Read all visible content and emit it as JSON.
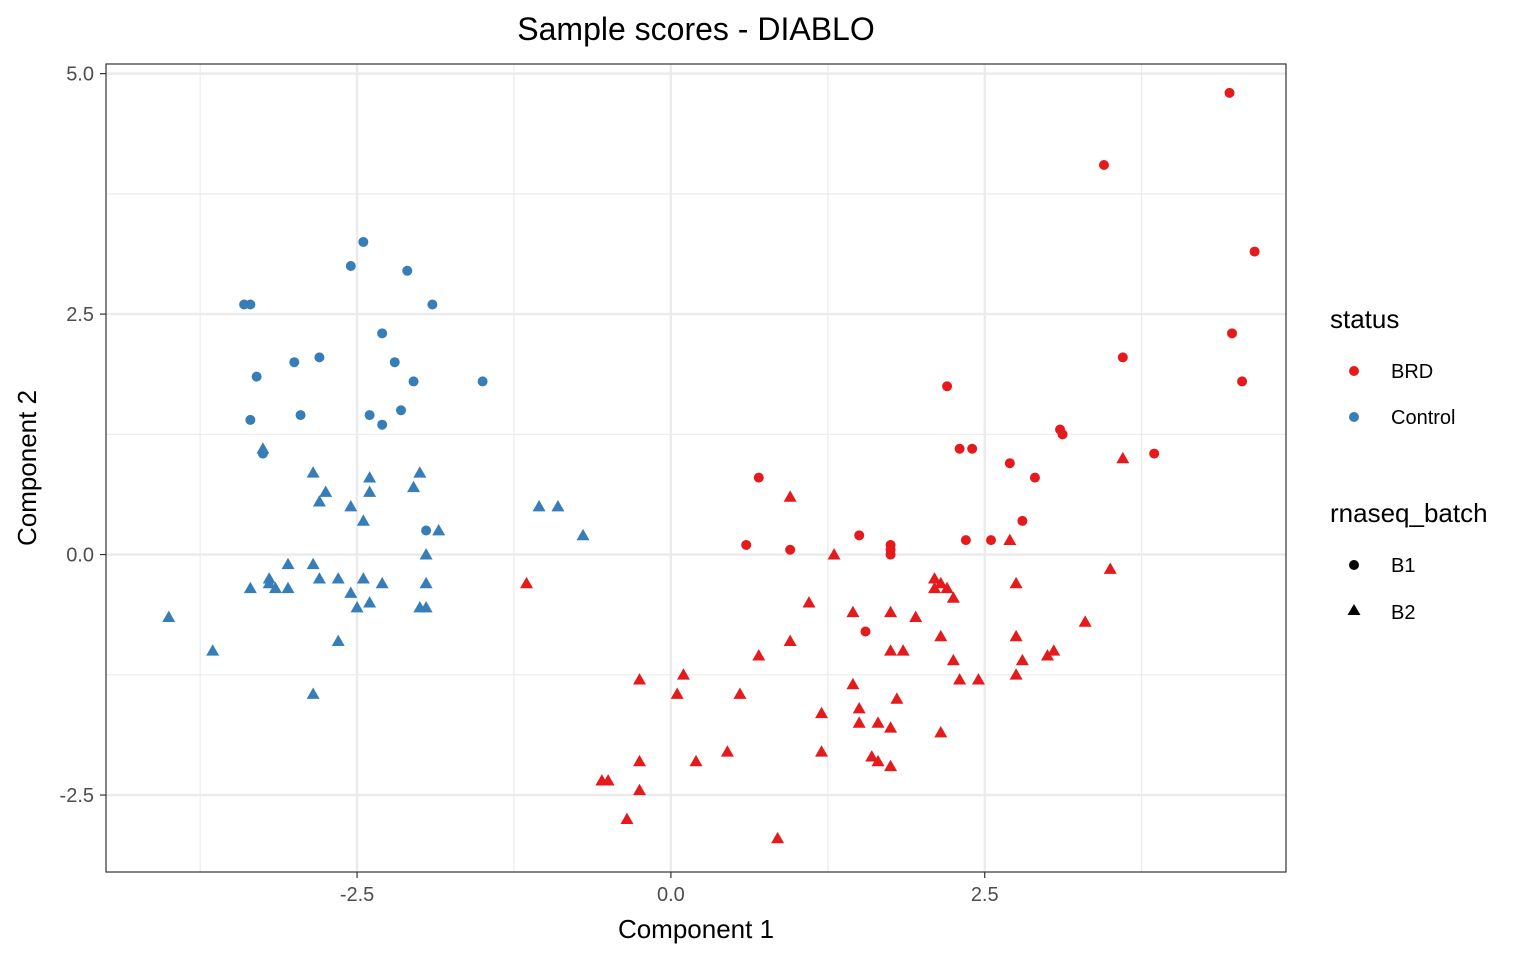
{
  "chart_data": {
    "type": "scatter",
    "title": "Sample scores - DIABLO",
    "xlabel": "Component 1",
    "ylabel": "Component 2",
    "xlim": [
      -4.5,
      4.9
    ],
    "ylim": [
      -3.3,
      5.1
    ],
    "x_ticks": [
      {
        "value": -2.5,
        "label": "-2.5"
      },
      {
        "value": 0.0,
        "label": "0.0"
      },
      {
        "value": 2.5,
        "label": "2.5"
      }
    ],
    "y_ticks": [
      {
        "value": -2.5,
        "label": "-2.5"
      },
      {
        "value": 0.0,
        "label": "0.0"
      },
      {
        "value": 2.5,
        "label": "2.5"
      },
      {
        "value": 5.0,
        "label": "5.0"
      }
    ],
    "grid": true,
    "legend_position": "right",
    "legend": {
      "color_title": "status",
      "shape_title": "rnaseq_batch",
      "colors": [
        {
          "label": "BRD",
          "color": "#e41a1c"
        },
        {
          "label": "Control",
          "color": "#377eb8"
        }
      ],
      "shapes": [
        {
          "label": "B1",
          "shape": "circle"
        },
        {
          "label": "B2",
          "shape": "triangle"
        }
      ]
    },
    "series": [
      {
        "status": "Control",
        "batch": "B1",
        "color": "#377eb8",
        "shape": "circle",
        "points": [
          [
            -3.4,
            2.6
          ],
          [
            -3.35,
            2.6
          ],
          [
            -2.45,
            3.25
          ],
          [
            -2.55,
            3.0
          ],
          [
            -2.1,
            2.95
          ],
          [
            -1.9,
            2.6
          ],
          [
            -3.3,
            1.85
          ],
          [
            -3.0,
            2.0
          ],
          [
            -2.8,
            2.05
          ],
          [
            -2.3,
            2.3
          ],
          [
            -2.2,
            2.0
          ],
          [
            -2.05,
            1.8
          ],
          [
            -1.5,
            1.8
          ],
          [
            -3.35,
            1.4
          ],
          [
            -2.95,
            1.45
          ],
          [
            -2.4,
            1.45
          ],
          [
            -2.15,
            1.5
          ],
          [
            -2.3,
            1.35
          ],
          [
            -3.25,
            1.05
          ],
          [
            -1.95,
            0.25
          ]
        ]
      },
      {
        "status": "Control",
        "batch": "B2",
        "color": "#377eb8",
        "shape": "triangle",
        "points": [
          [
            -3.25,
            1.1
          ],
          [
            -2.85,
            0.85
          ],
          [
            -2.75,
            0.65
          ],
          [
            -2.8,
            0.55
          ],
          [
            -2.4,
            0.8
          ],
          [
            -2.55,
            0.5
          ],
          [
            -2.45,
            0.35
          ],
          [
            -2.4,
            0.65
          ],
          [
            -2.05,
            0.7
          ],
          [
            -2.0,
            0.85
          ],
          [
            -1.85,
            0.25
          ],
          [
            -1.95,
            0.0
          ],
          [
            -1.05,
            0.5
          ],
          [
            -0.9,
            0.5
          ],
          [
            -0.7,
            0.2
          ],
          [
            -3.05,
            -0.1
          ],
          [
            -2.85,
            -0.1
          ],
          [
            -3.2,
            -0.25
          ],
          [
            -3.2,
            -0.3
          ],
          [
            -3.15,
            -0.35
          ],
          [
            -3.05,
            -0.35
          ],
          [
            -2.8,
            -0.25
          ],
          [
            -2.65,
            -0.25
          ],
          [
            -2.55,
            -0.4
          ],
          [
            -2.45,
            -0.25
          ],
          [
            -2.3,
            -0.3
          ],
          [
            -2.4,
            -0.5
          ],
          [
            -2.5,
            -0.55
          ],
          [
            -2.0,
            -0.55
          ],
          [
            -1.95,
            -0.55
          ],
          [
            -1.95,
            -0.3
          ],
          [
            -3.35,
            -0.35
          ],
          [
            -4.0,
            -0.65
          ],
          [
            -3.65,
            -1.0
          ],
          [
            -2.65,
            -0.9
          ],
          [
            -2.85,
            -1.45
          ]
        ]
      },
      {
        "status": "BRD",
        "batch": "B1",
        "color": "#e41a1c",
        "shape": "circle",
        "points": [
          [
            4.45,
            4.8
          ],
          [
            3.45,
            4.05
          ],
          [
            4.65,
            3.15
          ],
          [
            4.47,
            2.3
          ],
          [
            3.6,
            2.05
          ],
          [
            4.55,
            1.8
          ],
          [
            2.2,
            1.75
          ],
          [
            3.1,
            1.3
          ],
          [
            3.12,
            1.25
          ],
          [
            2.3,
            1.1
          ],
          [
            2.4,
            1.1
          ],
          [
            2.7,
            0.95
          ],
          [
            3.85,
            1.05
          ],
          [
            2.9,
            0.8
          ],
          [
            0.7,
            0.8
          ],
          [
            2.8,
            0.35
          ],
          [
            0.6,
            0.1
          ],
          [
            0.95,
            0.05
          ],
          [
            1.5,
            0.2
          ],
          [
            2.35,
            0.15
          ],
          [
            2.55,
            0.15
          ],
          [
            1.75,
            0.1
          ],
          [
            1.75,
            0.0
          ],
          [
            1.75,
            0.05
          ],
          [
            1.55,
            -0.8
          ]
        ]
      },
      {
        "status": "BRD",
        "batch": "B2",
        "color": "#e41a1c",
        "shape": "triangle",
        "points": [
          [
            3.6,
            1.0
          ],
          [
            0.95,
            0.6
          ],
          [
            1.3,
            0.0
          ],
          [
            2.7,
            0.15
          ],
          [
            3.5,
            -0.15
          ],
          [
            2.1,
            -0.25
          ],
          [
            2.15,
            -0.3
          ],
          [
            2.2,
            -0.35
          ],
          [
            2.1,
            -0.35
          ],
          [
            2.75,
            -0.3
          ],
          [
            -1.15,
            -0.3
          ],
          [
            1.1,
            -0.5
          ],
          [
            2.25,
            -0.45
          ],
          [
            1.45,
            -0.6
          ],
          [
            1.75,
            -0.6
          ],
          [
            1.95,
            -0.65
          ],
          [
            3.3,
            -0.7
          ],
          [
            0.95,
            -0.9
          ],
          [
            2.15,
            -0.85
          ],
          [
            2.75,
            -0.85
          ],
          [
            3.05,
            -1.0
          ],
          [
            1.75,
            -1.0
          ],
          [
            1.85,
            -1.0
          ],
          [
            3.0,
            -1.05
          ],
          [
            2.25,
            -1.1
          ],
          [
            2.8,
            -1.1
          ],
          [
            0.7,
            -1.05
          ],
          [
            0.1,
            -1.25
          ],
          [
            2.3,
            -1.3
          ],
          [
            2.45,
            -1.3
          ],
          [
            2.75,
            -1.25
          ],
          [
            -0.25,
            -1.3
          ],
          [
            1.45,
            -1.35
          ],
          [
            0.55,
            -1.45
          ],
          [
            0.05,
            -1.45
          ],
          [
            1.8,
            -1.5
          ],
          [
            1.5,
            -1.6
          ],
          [
            1.2,
            -1.65
          ],
          [
            1.5,
            -1.75
          ],
          [
            1.65,
            -1.75
          ],
          [
            1.75,
            -1.8
          ],
          [
            2.15,
            -1.85
          ],
          [
            0.45,
            -2.05
          ],
          [
            1.2,
            -2.05
          ],
          [
            1.6,
            -2.1
          ],
          [
            1.65,
            -2.15
          ],
          [
            1.75,
            -2.2
          ],
          [
            0.2,
            -2.15
          ],
          [
            -0.25,
            -2.15
          ],
          [
            -0.55,
            -2.35
          ],
          [
            -0.5,
            -2.35
          ],
          [
            -0.25,
            -2.45
          ],
          [
            -0.35,
            -2.75
          ],
          [
            0.85,
            -2.95
          ]
        ]
      }
    ]
  }
}
